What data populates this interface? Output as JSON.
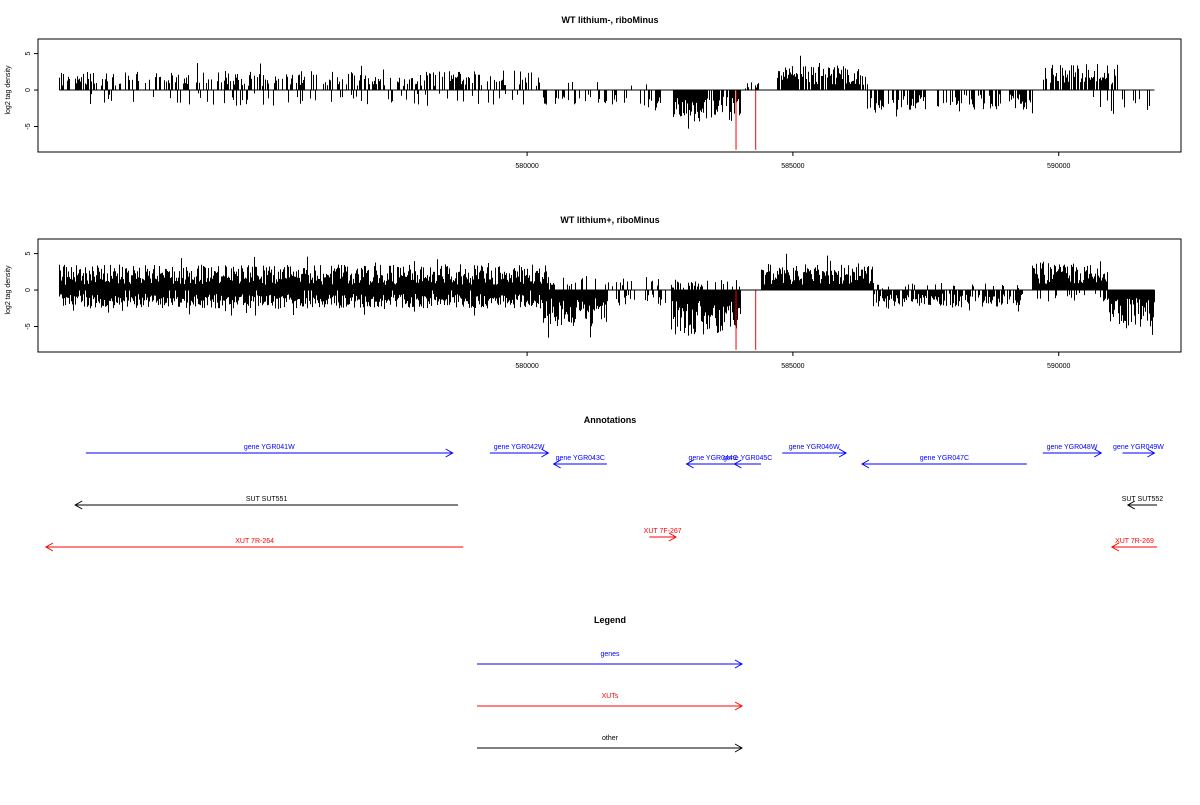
{
  "panels": [
    {
      "title": "WT lithium-, riboMinus",
      "ylabel": "log2 tag density",
      "yticks": [
        -5,
        0,
        5
      ],
      "xticks": [
        580000,
        585000,
        590000
      ],
      "xlim": [
        570800,
        592300
      ],
      "ylim": [
        -8.5,
        7
      ],
      "regions": [
        {
          "from": 571200,
          "to": 580300,
          "sign": 1,
          "density": 0.45,
          "amp": 2.2,
          "seed": 3
        },
        {
          "from": 571700,
          "to": 580000,
          "sign": -1,
          "density": 0.14,
          "amp": 1.8,
          "seed": 7
        },
        {
          "from": 580300,
          "to": 582500,
          "sign": -1,
          "density": 0.25,
          "amp": 2.0,
          "seed": 11
        },
        {
          "from": 580300,
          "to": 582500,
          "sign": 1,
          "density": 0.04,
          "amp": 1.0,
          "seed": 13
        },
        {
          "from": 582750,
          "to": 584000,
          "sign": -1,
          "density": 0.9,
          "amp": 3.6,
          "seed": 17
        },
        {
          "from": 584100,
          "to": 584400,
          "sign": 1,
          "density": 0.25,
          "amp": 0.9,
          "seed": 19
        },
        {
          "from": 584700,
          "to": 586400,
          "sign": 1,
          "density": 0.85,
          "amp": 2.8,
          "seed": 23
        },
        {
          "from": 586400,
          "to": 589500,
          "sign": -1,
          "density": 0.55,
          "amp": 2.3,
          "seed": 29
        },
        {
          "from": 589700,
          "to": 591100,
          "sign": 1,
          "density": 0.8,
          "amp": 3.0,
          "seed": 31
        },
        {
          "from": 590600,
          "to": 591800,
          "sign": -1,
          "density": 0.18,
          "amp": 2.4,
          "seed": 37
        }
      ],
      "red_lines": [
        {
          "x": 583930,
          "y": -8.2
        },
        {
          "x": 584300,
          "y": -8.2
        }
      ]
    },
    {
      "title": "WT lithium+, riboMinus",
      "ylabel": "log2 tag density",
      "yticks": [
        -5,
        0,
        5
      ],
      "xticks": [
        580000,
        585000,
        590000
      ],
      "xlim": [
        570800,
        592300
      ],
      "ylim": [
        -8.5,
        7
      ],
      "regions": [
        {
          "from": 571200,
          "to": 580400,
          "sign": 1,
          "density": 1.0,
          "amp": 2.9,
          "seed": 41
        },
        {
          "from": 571200,
          "to": 580400,
          "sign": -1,
          "density": 0.95,
          "amp": 2.1,
          "seed": 43
        },
        {
          "from": 580300,
          "to": 581500,
          "sign": -1,
          "density": 1.0,
          "amp": 4.2,
          "seed": 47
        },
        {
          "from": 580300,
          "to": 582600,
          "sign": 1,
          "density": 0.2,
          "amp": 1.6,
          "seed": 53
        },
        {
          "from": 581500,
          "to": 582600,
          "sign": -1,
          "density": 0.35,
          "amp": 1.8,
          "seed": 59
        },
        {
          "from": 582700,
          "to": 584000,
          "sign": -1,
          "density": 1.0,
          "amp": 5.3,
          "seed": 61
        },
        {
          "from": 582700,
          "to": 584000,
          "sign": 1,
          "density": 0.35,
          "amp": 1.2,
          "seed": 67
        },
        {
          "from": 584400,
          "to": 586500,
          "sign": 1,
          "density": 1.0,
          "amp": 3.0,
          "seed": 71
        },
        {
          "from": 586500,
          "to": 589300,
          "sign": -1,
          "density": 0.8,
          "amp": 2.0,
          "seed": 73
        },
        {
          "from": 586500,
          "to": 589300,
          "sign": 1,
          "density": 0.1,
          "amp": 0.8,
          "seed": 79
        },
        {
          "from": 589500,
          "to": 590900,
          "sign": 1,
          "density": 1.0,
          "amp": 3.3,
          "seed": 83
        },
        {
          "from": 589500,
          "to": 590900,
          "sign": -1,
          "density": 0.25,
          "amp": 1.3,
          "seed": 89
        },
        {
          "from": 590900,
          "to": 591800,
          "sign": -1,
          "density": 1.0,
          "amp": 4.2,
          "seed": 97
        }
      ],
      "red_lines": [
        {
          "x": 583930,
          "y": -8.2
        },
        {
          "x": 584300,
          "y": -8.2
        }
      ]
    }
  ],
  "annotations": {
    "title": "Annotations",
    "features": [
      {
        "label": "gene YGR041W",
        "start": 571700,
        "end": 578600,
        "strand": "+",
        "type": "gene",
        "row": 1
      },
      {
        "label": "gene YGR042W",
        "start": 579300,
        "end": 580400,
        "strand": "+",
        "type": "gene",
        "row": 1
      },
      {
        "label": "gene YGR043C",
        "start": 580500,
        "end": 581500,
        "strand": "-",
        "type": "gene",
        "row": 0
      },
      {
        "label": "gene YGR044C",
        "start": 583000,
        "end": 584000,
        "strand": "-",
        "type": "gene",
        "row": 0
      },
      {
        "label": "gene YGR045C",
        "start": 583900,
        "end": 584400,
        "strand": "-",
        "type": "gene",
        "row": 0
      },
      {
        "label": "gene YGR046W",
        "start": 584800,
        "end": 586000,
        "strand": "+",
        "type": "gene",
        "row": 1
      },
      {
        "label": "gene YGR047C",
        "start": 586300,
        "end": 589400,
        "strand": "-",
        "type": "gene",
        "row": 0
      },
      {
        "label": "gene YGR048W",
        "start": 589700,
        "end": 590800,
        "strand": "+",
        "type": "gene",
        "row": 1
      },
      {
        "label": "gene YGR049W",
        "start": 591200,
        "end": 591800,
        "strand": "+",
        "type": "gene",
        "row": 1
      },
      {
        "label": "SUT SUT551",
        "start": 571500,
        "end": 578700,
        "strand": "-",
        "type": "other",
        "row": 2
      },
      {
        "label": "SUT SUT552",
        "start": 591300,
        "end": 591850,
        "strand": "-",
        "type": "other",
        "row": 2
      },
      {
        "label": "XUT 7F-267",
        "start": 582300,
        "end": 582800,
        "strand": "+",
        "type": "XUT",
        "row": 3
      },
      {
        "label": "XUT 7R-264",
        "start": 570950,
        "end": 578800,
        "strand": "-",
        "type": "XUT",
        "row": 4
      },
      {
        "label": "XUT 7R-269",
        "start": 591000,
        "end": 591850,
        "strand": "-",
        "type": "XUT",
        "row": 4
      }
    ]
  },
  "legend": {
    "title": "Legend",
    "items": [
      {
        "label": "genes",
        "color": "#0000ff"
      },
      {
        "label": "XUTs",
        "color": "#ff0000"
      },
      {
        "label": "other",
        "color": "#000000"
      }
    ]
  },
  "colors": {
    "gene": "#0000ff",
    "XUT": "#ff0000",
    "other": "#000000",
    "highlight": "#ff0000"
  }
}
